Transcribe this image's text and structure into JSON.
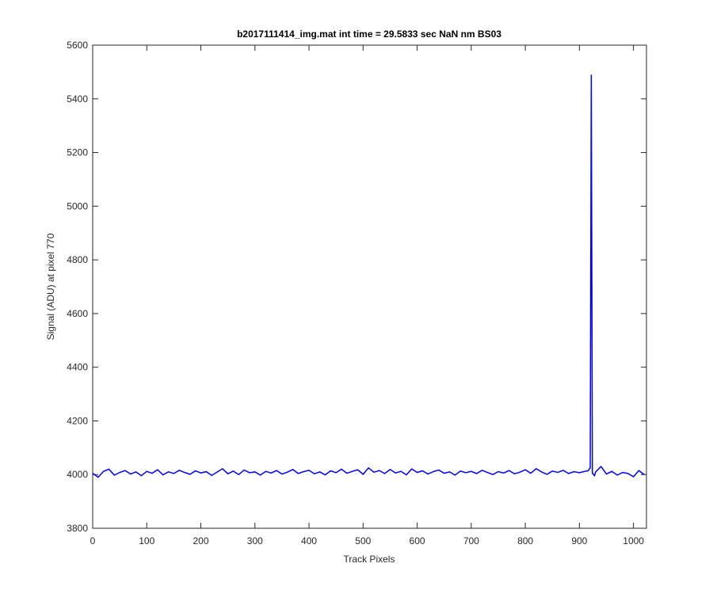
{
  "chart_data": {
    "type": "line",
    "title": "b2017111414_img.mat int time = 29.5833 sec  NaN nm BS03",
    "xlabel": "Track Pixels",
    "ylabel": "Signal (ADU) at pixel 770",
    "x": [
      0,
      10,
      20,
      30,
      40,
      50,
      60,
      70,
      80,
      90,
      100,
      110,
      120,
      130,
      140,
      150,
      160,
      170,
      180,
      190,
      200,
      210,
      220,
      230,
      240,
      250,
      260,
      270,
      280,
      290,
      300,
      310,
      320,
      330,
      340,
      350,
      360,
      370,
      380,
      390,
      400,
      410,
      420,
      430,
      440,
      450,
      460,
      470,
      480,
      490,
      500,
      510,
      520,
      530,
      540,
      550,
      560,
      570,
      580,
      590,
      600,
      610,
      620,
      630,
      640,
      650,
      660,
      670,
      680,
      690,
      700,
      710,
      720,
      730,
      740,
      750,
      760,
      770,
      780,
      790,
      800,
      810,
      820,
      830,
      840,
      850,
      860,
      870,
      880,
      890,
      900,
      910,
      916,
      920,
      922,
      924,
      928,
      930,
      940,
      950,
      960,
      970,
      980,
      990,
      1000,
      1010,
      1020
    ],
    "series": [
      {
        "color": "#0000ff",
        "values": [
          4005,
          3990,
          4012,
          4020,
          3998,
          4008,
          4015,
          4002,
          4010,
          3996,
          4012,
          4005,
          4018,
          3999,
          4010,
          4004,
          4016,
          4008,
          4001,
          4014,
          4006,
          4011,
          3997,
          4009,
          4022,
          4003,
          4013,
          4000,
          4017,
          4007,
          4010,
          3998,
          4012,
          4006,
          4015,
          4002,
          4009,
          4019,
          4004,
          4011,
          4016,
          4003,
          4010,
          3999,
          4014,
          4007,
          4020,
          4005,
          4012,
          4018,
          4001,
          4025,
          4009,
          4015,
          4004,
          4019,
          4006,
          4012,
          3999,
          4021,
          4008,
          4014,
          4002,
          4011,
          4017,
          4005,
          4010,
          3998,
          4013,
          4007,
          4012,
          4004,
          4016,
          4008,
          4000,
          4011,
          4006,
          4015,
          4003,
          4009,
          4018,
          4005,
          4022,
          4010,
          4001,
          4013,
          4008,
          4016,
          4004,
          4011,
          4007,
          4012,
          4014,
          4025,
          5490,
          4005,
          3996,
          4010,
          4030,
          4002,
          4012,
          3998,
          4008,
          4004,
          3992,
          4015,
          4000
        ]
      }
    ],
    "xlim": [
      0,
      1024
    ],
    "ylim": [
      3800,
      5600
    ],
    "xticks": [
      0,
      100,
      200,
      300,
      400,
      500,
      600,
      700,
      800,
      900,
      1000
    ],
    "yticks": [
      3800,
      4000,
      4200,
      4400,
      4600,
      4800,
      5000,
      5200,
      5400,
      5600
    ]
  }
}
